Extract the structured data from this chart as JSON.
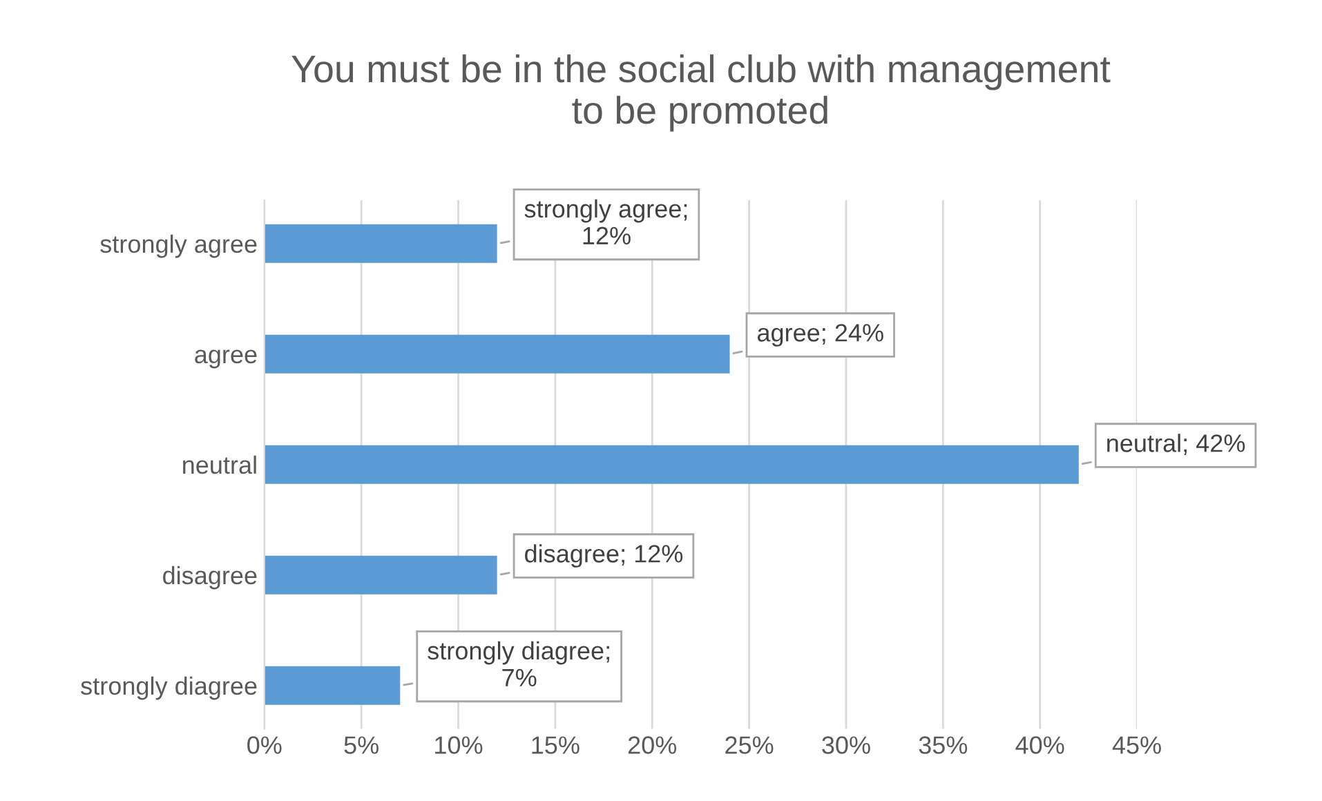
{
  "chart_data": {
    "type": "bar",
    "orientation": "horizontal",
    "title": "You must be in the social club with management\nto be promoted",
    "categories": [
      "strongly agree",
      "agree",
      "neutral",
      "disagree",
      "strongly diagree"
    ],
    "values": [
      12,
      24,
      42,
      12,
      7
    ],
    "value_labels": [
      "strongly agree;\n12%",
      "agree; 24%",
      "neutral; 42%",
      "disagree; 12%",
      "strongly diagree;\n7%"
    ],
    "color": "#5b9bd5",
    "xlim": [
      0,
      45
    ],
    "xticks": [
      {
        "value": 0,
        "label": "0%"
      },
      {
        "value": 5,
        "label": "5%"
      },
      {
        "value": 10,
        "label": "10%"
      },
      {
        "value": 15,
        "label": "15%"
      },
      {
        "value": 20,
        "label": "20%"
      },
      {
        "value": 25,
        "label": "25%"
      },
      {
        "value": 30,
        "label": "30%"
      },
      {
        "value": 35,
        "label": "35%"
      },
      {
        "value": 40,
        "label": "40%"
      },
      {
        "value": 45,
        "label": "45%"
      }
    ],
    "grid": "x"
  }
}
